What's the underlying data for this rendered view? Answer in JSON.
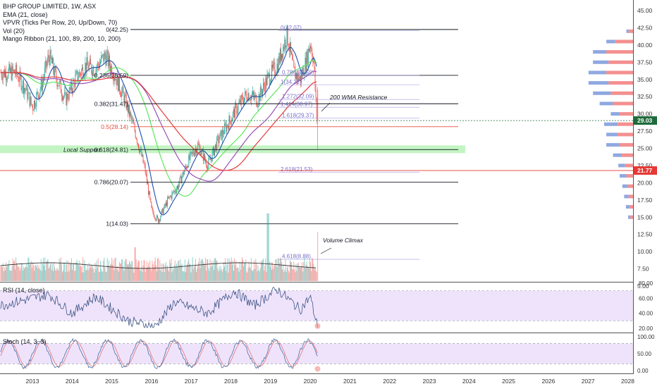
{
  "legend": {
    "title": "BHP GROUP LIMITED, 1W, ASX",
    "indicators": [
      "EMA (21, close)",
      "VPVR (Ticks Per Row, 20, Up/Down, 70)",
      "Vol (20)",
      "Mango Ribbon (21, 100, 89, 200, 10, 200)"
    ]
  },
  "panes": {
    "rsi_label": "RSI (14, close)",
    "stoch_label": "Stoch (14, 3, 3)"
  },
  "colors": {
    "candle_up": "#26a69a",
    "candle_down": "#ef5350",
    "ema": "#1e4fae",
    "ribbon_green": "#5ee75e",
    "ribbon_purple": "#9b4fb5",
    "ribbon_red": "#e23b3b",
    "support_band": "#b8f2b8",
    "rsi_band": "#efe3fb",
    "price_tag_current": "#1d6b3a",
    "price_tag_low": "#e53935"
  },
  "annotations": {
    "wma_resistance": "200 WMA Resistance",
    "volume_climax": "Volume Climax",
    "local_support": "Local Support"
  },
  "price_tags": {
    "current": "29.03",
    "low": "21.77"
  },
  "chart_data": [
    {
      "type": "candlestick",
      "title": "BHP GROUP LIMITED, 1W, ASX",
      "x_axis": {
        "ticks": [
          "2013",
          "2014",
          "2015",
          "2016",
          "2017",
          "2018",
          "2019",
          "2020",
          "2021",
          "2022",
          "2023",
          "2024",
          "2025",
          "2026",
          "2027",
          "2028"
        ]
      },
      "y_axis": {
        "ticks": [
          "45.00",
          "42.50",
          "40.00",
          "37.50",
          "35.00",
          "32.50",
          "30.00",
          "27.50",
          "25.00",
          "22.50",
          "20.00",
          "17.50",
          "15.00",
          "12.50",
          "10.00",
          "7.50",
          "5.00"
        ],
        "range": [
          4.5,
          46.5
        ]
      },
      "price_path": [
        [
          "2012-08",
          36.0
        ],
        [
          "2012-11",
          33.5
        ],
        [
          "2013-01",
          31.0
        ],
        [
          "2013-04",
          34.5
        ],
        [
          "2013-06",
          38.5
        ],
        [
          "2013-08",
          35.5
        ],
        [
          "2013-11",
          32.0
        ],
        [
          "2014-02",
          35.0
        ],
        [
          "2014-05",
          37.0
        ],
        [
          "2014-08",
          36.5
        ],
        [
          "2014-11",
          38.5
        ],
        [
          "2015-02",
          35.5
        ],
        [
          "2015-05",
          32.0
        ],
        [
          "2015-08",
          27.5
        ],
        [
          "2015-11",
          22.0
        ],
        [
          "2016-01",
          16.0
        ],
        [
          "2016-03",
          14.5
        ],
        [
          "2016-06",
          17.5
        ],
        [
          "2016-09",
          19.5
        ],
        [
          "2016-12",
          23.0
        ],
        [
          "2017-03",
          25.5
        ],
        [
          "2017-06",
          22.5
        ],
        [
          "2017-09",
          26.0
        ],
        [
          "2017-12",
          28.5
        ],
        [
          "2018-03",
          31.0
        ],
        [
          "2018-06",
          33.0
        ],
        [
          "2018-09",
          32.0
        ],
        [
          "2018-12",
          35.0
        ],
        [
          "2019-03",
          37.0
        ],
        [
          "2019-06",
          41.5
        ],
        [
          "2019-08",
          36.0
        ],
        [
          "2019-10",
          35.0
        ],
        [
          "2019-12",
          38.0
        ],
        [
          "2020-01",
          40.5
        ],
        [
          "2020-02",
          38.0
        ],
        [
          "2020-03",
          29.0
        ]
      ],
      "fibonacci": [
        {
          "label": "0(42.25)",
          "value": 42.25
        },
        {
          "label": "0.236(35.59)",
          "value": 35.59
        },
        {
          "label": "0.382(31.47)",
          "value": 31.47
        },
        {
          "label": "0.5(28.14)",
          "value": 28.14
        },
        {
          "label": "0.618(24.81)",
          "value": 24.81
        },
        {
          "label": "0.786(20.07)",
          "value": 20.07
        },
        {
          "label": "1(14.03)",
          "value": 14.03
        }
      ],
      "fib_extension": [
        {
          "label": "0(42.07)",
          "value": 42.07
        },
        {
          "label": "0.786(35.59)",
          "value": 35.59
        },
        {
          "label": "1(34.22)",
          "value": 34.22
        },
        {
          "label": "1.272(32.09)",
          "value": 32.09
        },
        {
          "label": "1.414(30.97)",
          "value": 30.97
        },
        {
          "label": "1.618(29.37)",
          "value": 29.37
        },
        {
          "label": "2.618(21.53)",
          "value": 21.53
        },
        {
          "label": "4.618(8.88)",
          "value": 8.88
        }
      ],
      "vpvr": [
        {
          "price": 42.0,
          "up": 0.05,
          "down": 0.1
        },
        {
          "price": 40.5,
          "up": 0.2,
          "down": 0.4
        },
        {
          "price": 39.0,
          "up": 0.3,
          "down": 0.6
        },
        {
          "price": 37.5,
          "up": 0.35,
          "down": 0.55
        },
        {
          "price": 36.0,
          "up": 0.4,
          "down": 0.6
        },
        {
          "price": 34.5,
          "up": 0.45,
          "down": 0.55
        },
        {
          "price": 33.0,
          "up": 0.4,
          "down": 0.5
        },
        {
          "price": 31.5,
          "up": 0.3,
          "down": 0.45
        },
        {
          "price": 30.0,
          "up": 0.2,
          "down": 0.3
        },
        {
          "price": 28.5,
          "up": 0.3,
          "down": 0.35
        },
        {
          "price": 27.0,
          "up": 0.25,
          "down": 0.35
        },
        {
          "price": 25.5,
          "up": 0.3,
          "down": 0.3
        },
        {
          "price": 24.0,
          "up": 0.2,
          "down": 0.25
        },
        {
          "price": 22.5,
          "up": 0.15,
          "down": 0.18
        },
        {
          "price": 21.0,
          "up": 0.15,
          "down": 0.15
        },
        {
          "price": 19.5,
          "up": 0.12,
          "down": 0.12
        },
        {
          "price": 18.0,
          "up": 0.1,
          "down": 0.1
        },
        {
          "price": 16.5,
          "up": 0.08,
          "down": 0.08
        },
        {
          "price": 15.0,
          "up": 0.05,
          "down": 0.06
        }
      ]
    },
    {
      "type": "line",
      "title": "RSI (14, close)",
      "y_axis": {
        "ticks": [
          "80.00",
          "60.00",
          "40.00",
          "20.00"
        ],
        "range": [
          17,
          82
        ]
      },
      "bands": [
        30,
        70
      ],
      "anchors": [
        [
          "2012-08",
          55
        ],
        [
          "2013-06",
          65
        ],
        [
          "2014-01",
          40
        ],
        [
          "2014-08",
          62
        ],
        [
          "2015-06",
          30
        ],
        [
          "2016-02",
          22
        ],
        [
          "2016-08",
          55
        ],
        [
          "2017-06",
          40
        ],
        [
          "2018-02",
          70
        ],
        [
          "2018-08",
          50
        ],
        [
          "2019-03",
          72
        ],
        [
          "2019-10",
          45
        ],
        [
          "2020-01",
          62
        ],
        [
          "2020-03",
          25
        ]
      ]
    },
    {
      "type": "line",
      "title": "Stoch (14, 3, 3)",
      "y_axis": {
        "ticks": [
          "100.00",
          "50.00",
          "0.00"
        ],
        "range": [
          -5,
          108
        ]
      },
      "bands": [
        20,
        80
      ]
    }
  ]
}
